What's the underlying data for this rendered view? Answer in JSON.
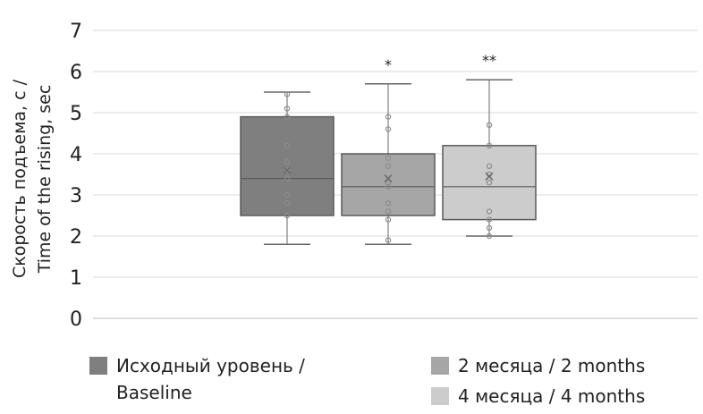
{
  "chart_data": {
    "type": "box",
    "ylabel_line1": "Скорость подъема, с /",
    "ylabel_line2": "Time of the rising, sec",
    "ylim": [
      0,
      7
    ],
    "yticks": [
      "0",
      "1",
      "2",
      "3",
      "4",
      "5",
      "6",
      "7"
    ],
    "grid": true,
    "legend_position": "bottom",
    "series": [
      {
        "name_ru": "Исходный уровень /",
        "name_en": "Baseline",
        "color": "#7f7f7f",
        "min": 1.8,
        "q1": 2.5,
        "median": 3.4,
        "q3": 4.9,
        "max": 5.5,
        "mean": 3.6,
        "significance": "",
        "points": [
          5.45,
          5.1,
          4.9,
          4.2,
          3.8,
          3.6,
          3.4,
          3.0,
          2.8,
          2.5
        ]
      },
      {
        "name_ru": "2 месяца / 2 months",
        "name_en": "",
        "color": "#a6a6a6",
        "min": 1.8,
        "q1": 2.5,
        "median": 3.2,
        "q3": 4.0,
        "max": 5.7,
        "mean": 3.4,
        "significance": "*",
        "points": [
          4.9,
          4.6,
          3.9,
          3.7,
          3.3,
          3.2,
          2.8,
          2.6,
          2.4,
          1.9
        ]
      },
      {
        "name_ru": "4 месяца / 4 months",
        "name_en": "",
        "color": "#cccccc",
        "min": 2.0,
        "q1": 2.4,
        "median": 3.2,
        "q3": 4.2,
        "max": 5.8,
        "mean": 3.45,
        "significance": "**",
        "points": [
          4.7,
          4.2,
          3.7,
          3.5,
          3.3,
          2.6,
          2.4,
          2.2,
          2.0
        ]
      }
    ]
  }
}
